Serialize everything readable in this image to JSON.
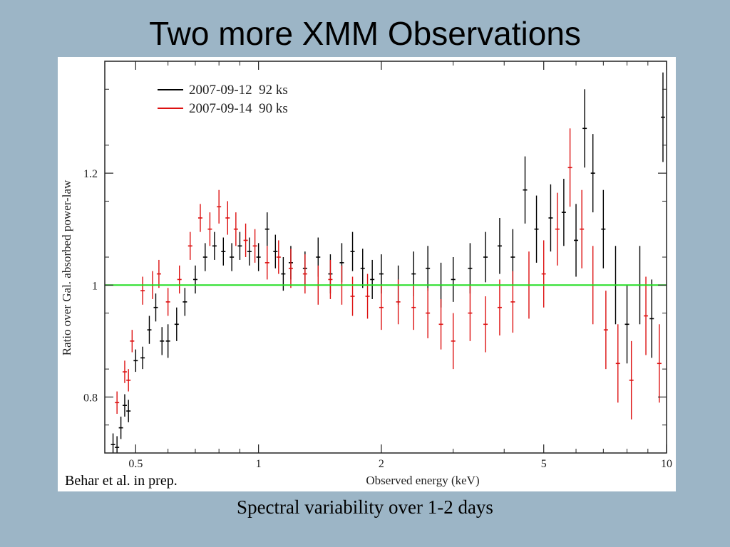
{
  "slide": {
    "title": "Two more XMM Observations",
    "caption": "Spectral variability over 1-2 days",
    "credit": "Behar et al. in prep."
  },
  "chart_data": {
    "type": "scatter",
    "xlabel": "Observed energy (keV)",
    "ylabel": "Ratio over Gal. absorbed power-law",
    "xscale": "log",
    "xlim": [
      0.42,
      10
    ],
    "ylim": [
      0.7,
      1.4
    ],
    "x_ticks": [
      0.5,
      1,
      2,
      5,
      10
    ],
    "x_tick_labels": [
      "0.5",
      "1",
      "2",
      "5",
      "10"
    ],
    "y_ticks": [
      0.8,
      1,
      1.2
    ],
    "y_tick_labels": [
      "0.8",
      "1",
      "1.2"
    ],
    "legend_position": "top-left",
    "reference_line": {
      "y": 1,
      "color": "#22dd22"
    },
    "series": [
      {
        "name": "2007-09-12  92 ks",
        "color": "#000000",
        "points": [
          {
            "x": 0.44,
            "y": 0.715,
            "err": 0.02
          },
          {
            "x": 0.45,
            "y": 0.71,
            "err": 0.02
          },
          {
            "x": 0.46,
            "y": 0.745,
            "err": 0.02
          },
          {
            "x": 0.47,
            "y": 0.785,
            "err": 0.02
          },
          {
            "x": 0.48,
            "y": 0.775,
            "err": 0.02
          },
          {
            "x": 0.5,
            "y": 0.865,
            "err": 0.02
          },
          {
            "x": 0.52,
            "y": 0.87,
            "err": 0.02
          },
          {
            "x": 0.54,
            "y": 0.92,
            "err": 0.025
          },
          {
            "x": 0.56,
            "y": 0.96,
            "err": 0.025
          },
          {
            "x": 0.58,
            "y": 0.9,
            "err": 0.025
          },
          {
            "x": 0.6,
            "y": 0.9,
            "err": 0.03
          },
          {
            "x": 0.63,
            "y": 0.93,
            "err": 0.03
          },
          {
            "x": 0.66,
            "y": 0.97,
            "err": 0.025
          },
          {
            "x": 0.7,
            "y": 1.01,
            "err": 0.025
          },
          {
            "x": 0.74,
            "y": 1.05,
            "err": 0.025
          },
          {
            "x": 0.78,
            "y": 1.07,
            "err": 0.025
          },
          {
            "x": 0.82,
            "y": 1.06,
            "err": 0.025
          },
          {
            "x": 0.86,
            "y": 1.05,
            "err": 0.025
          },
          {
            "x": 0.9,
            "y": 1.07,
            "err": 0.025
          },
          {
            "x": 0.95,
            "y": 1.06,
            "err": 0.025
          },
          {
            "x": 1.0,
            "y": 1.05,
            "err": 0.025
          },
          {
            "x": 1.05,
            "y": 1.1,
            "err": 0.03
          },
          {
            "x": 1.1,
            "y": 1.06,
            "err": 0.03
          },
          {
            "x": 1.15,
            "y": 1.02,
            "err": 0.03
          },
          {
            "x": 1.2,
            "y": 1.04,
            "err": 0.03
          },
          {
            "x": 1.3,
            "y": 1.03,
            "err": 0.03
          },
          {
            "x": 1.4,
            "y": 1.05,
            "err": 0.035
          },
          {
            "x": 1.5,
            "y": 1.02,
            "err": 0.035
          },
          {
            "x": 1.6,
            "y": 1.04,
            "err": 0.035
          },
          {
            "x": 1.7,
            "y": 1.06,
            "err": 0.035
          },
          {
            "x": 1.8,
            "y": 1.03,
            "err": 0.035
          },
          {
            "x": 1.9,
            "y": 1.01,
            "err": 0.035
          },
          {
            "x": 2.0,
            "y": 1.02,
            "err": 0.035
          },
          {
            "x": 2.2,
            "y": 1.0,
            "err": 0.035
          },
          {
            "x": 2.4,
            "y": 1.02,
            "err": 0.04
          },
          {
            "x": 2.6,
            "y": 1.03,
            "err": 0.04
          },
          {
            "x": 2.8,
            "y": 1.0,
            "err": 0.04
          },
          {
            "x": 3.0,
            "y": 1.01,
            "err": 0.04
          },
          {
            "x": 3.3,
            "y": 1.03,
            "err": 0.045
          },
          {
            "x": 3.6,
            "y": 1.05,
            "err": 0.045
          },
          {
            "x": 3.9,
            "y": 1.07,
            "err": 0.05
          },
          {
            "x": 4.2,
            "y": 1.05,
            "err": 0.05
          },
          {
            "x": 4.5,
            "y": 1.17,
            "err": 0.06
          },
          {
            "x": 4.8,
            "y": 1.1,
            "err": 0.06
          },
          {
            "x": 5.2,
            "y": 1.12,
            "err": 0.06
          },
          {
            "x": 5.6,
            "y": 1.13,
            "err": 0.06
          },
          {
            "x": 6.0,
            "y": 1.08,
            "err": 0.065
          },
          {
            "x": 6.3,
            "y": 1.28,
            "err": 0.07
          },
          {
            "x": 6.6,
            "y": 1.2,
            "err": 0.07
          },
          {
            "x": 7.0,
            "y": 1.1,
            "err": 0.07
          },
          {
            "x": 7.5,
            "y": 1.0,
            "err": 0.07
          },
          {
            "x": 8.0,
            "y": 0.93,
            "err": 0.07
          },
          {
            "x": 8.6,
            "y": 1.0,
            "err": 0.07
          },
          {
            "x": 9.2,
            "y": 0.94,
            "err": 0.07
          },
          {
            "x": 9.8,
            "y": 1.3,
            "err": 0.08
          }
        ]
      },
      {
        "name": "2007-09-14  90 ks",
        "color": "#dd1111",
        "points": [
          {
            "x": 0.45,
            "y": 0.79,
            "err": 0.02
          },
          {
            "x": 0.47,
            "y": 0.845,
            "err": 0.02
          },
          {
            "x": 0.48,
            "y": 0.83,
            "err": 0.02
          },
          {
            "x": 0.49,
            "y": 0.9,
            "err": 0.02
          },
          {
            "x": 0.52,
            "y": 0.99,
            "err": 0.025
          },
          {
            "x": 0.55,
            "y": 1.0,
            "err": 0.025
          },
          {
            "x": 0.57,
            "y": 1.02,
            "err": 0.025
          },
          {
            "x": 0.6,
            "y": 0.97,
            "err": 0.025
          },
          {
            "x": 0.64,
            "y": 1.01,
            "err": 0.025
          },
          {
            "x": 0.68,
            "y": 1.07,
            "err": 0.025
          },
          {
            "x": 0.72,
            "y": 1.12,
            "err": 0.025
          },
          {
            "x": 0.76,
            "y": 1.1,
            "err": 0.03
          },
          {
            "x": 0.8,
            "y": 1.14,
            "err": 0.03
          },
          {
            "x": 0.84,
            "y": 1.12,
            "err": 0.03
          },
          {
            "x": 0.88,
            "y": 1.1,
            "err": 0.03
          },
          {
            "x": 0.93,
            "y": 1.08,
            "err": 0.03
          },
          {
            "x": 0.98,
            "y": 1.07,
            "err": 0.03
          },
          {
            "x": 1.05,
            "y": 1.04,
            "err": 0.03
          },
          {
            "x": 1.12,
            "y": 1.05,
            "err": 0.03
          },
          {
            "x": 1.2,
            "y": 1.03,
            "err": 0.035
          },
          {
            "x": 1.3,
            "y": 1.02,
            "err": 0.035
          },
          {
            "x": 1.4,
            "y": 1.0,
            "err": 0.035
          },
          {
            "x": 1.5,
            "y": 1.01,
            "err": 0.035
          },
          {
            "x": 1.6,
            "y": 1.0,
            "err": 0.035
          },
          {
            "x": 1.7,
            "y": 0.98,
            "err": 0.035
          },
          {
            "x": 1.85,
            "y": 0.98,
            "err": 0.04
          },
          {
            "x": 2.0,
            "y": 0.96,
            "err": 0.04
          },
          {
            "x": 2.2,
            "y": 0.97,
            "err": 0.04
          },
          {
            "x": 2.4,
            "y": 0.96,
            "err": 0.04
          },
          {
            "x": 2.6,
            "y": 0.95,
            "err": 0.045
          },
          {
            "x": 2.8,
            "y": 0.93,
            "err": 0.045
          },
          {
            "x": 3.0,
            "y": 0.9,
            "err": 0.05
          },
          {
            "x": 3.3,
            "y": 0.95,
            "err": 0.05
          },
          {
            "x": 3.6,
            "y": 0.93,
            "err": 0.05
          },
          {
            "x": 3.9,
            "y": 0.96,
            "err": 0.05
          },
          {
            "x": 4.2,
            "y": 0.97,
            "err": 0.055
          },
          {
            "x": 4.6,
            "y": 1.0,
            "err": 0.06
          },
          {
            "x": 5.0,
            "y": 1.02,
            "err": 0.06
          },
          {
            "x": 5.4,
            "y": 1.1,
            "err": 0.065
          },
          {
            "x": 5.8,
            "y": 1.21,
            "err": 0.07
          },
          {
            "x": 6.2,
            "y": 1.1,
            "err": 0.07
          },
          {
            "x": 6.6,
            "y": 1.0,
            "err": 0.07
          },
          {
            "x": 7.1,
            "y": 0.92,
            "err": 0.07
          },
          {
            "x": 7.6,
            "y": 0.86,
            "err": 0.07
          },
          {
            "x": 8.2,
            "y": 0.83,
            "err": 0.07
          },
          {
            "x": 8.9,
            "y": 0.945,
            "err": 0.07
          },
          {
            "x": 9.6,
            "y": 0.86,
            "err": 0.07
          }
        ]
      }
    ]
  }
}
